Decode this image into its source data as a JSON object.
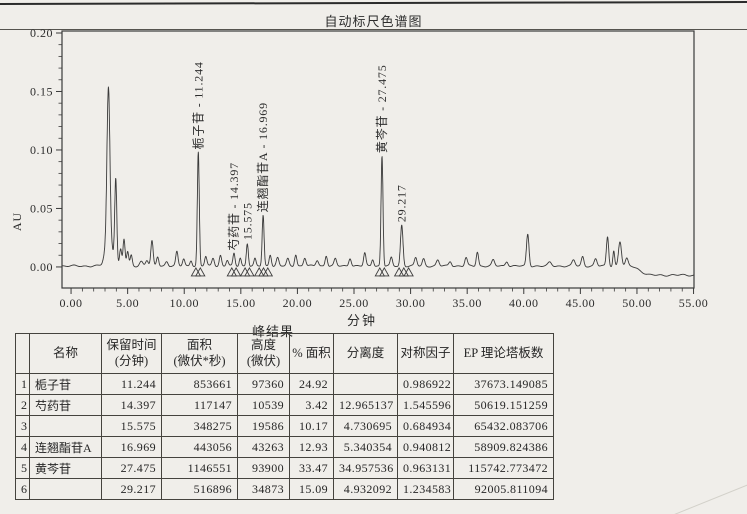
{
  "table": {
    "caption": "峰结果",
    "columns": [
      "",
      "名称",
      "保留时间\n(分钟)",
      "面积\n(微伏*秒)",
      "高度\n(微伏)",
      "% 面积",
      "分离度",
      "对称因子",
      "EP 理论塔板数"
    ],
    "rows": [
      [
        "1",
        "栀子苷",
        "11.244",
        "853661",
        "97360",
        "24.92",
        "",
        "0.986922",
        "37673.149085"
      ],
      [
        "2",
        "芍药苷",
        "14.397",
        "117147",
        "10539",
        "3.42",
        "12.965137",
        "1.545596",
        "50619.151259"
      ],
      [
        "3",
        "",
        "15.575",
        "348275",
        "19586",
        "10.17",
        "4.730695",
        "0.684934",
        "65432.083706"
      ],
      [
        "4",
        "连翘酯苷A",
        "16.969",
        "443056",
        "43263",
        "12.93",
        "5.340354",
        "0.940812",
        "58909.824386"
      ],
      [
        "5",
        "黄芩苷",
        "27.475",
        "1146551",
        "93900",
        "33.47",
        "34.957536",
        "0.963131",
        "115742.773472"
      ],
      [
        "6",
        "",
        "29.217",
        "516896",
        "34873",
        "15.09",
        "4.932092",
        "1.234583",
        "92005.811094"
      ]
    ]
  },
  "chart_data": {
    "type": "line",
    "title": "自动标尺色谱图",
    "xlabel": "分钟",
    "ylabel": "AU",
    "xlim": [
      -0.8,
      55.04
    ],
    "ylim": [
      -0.018,
      0.2017
    ],
    "xticks": [
      0,
      5,
      10,
      15,
      20,
      25,
      30,
      35,
      40,
      45,
      50,
      55
    ],
    "x_minor_step": 1,
    "yticks": [
      0.0,
      0.05,
      0.1,
      0.15,
      0.2
    ],
    "y_minor_step": 0.01,
    "grid": false,
    "legend": false,
    "line_color": "#3a3a3a",
    "text_color": "#2c2c2c",
    "labeled_peaks": [
      {
        "name": "栀子苷",
        "rt": 11.244,
        "apex_au": 0.097,
        "label": "栀子苷 - 11.244"
      },
      {
        "name": "芍药苷",
        "rt": 14.397,
        "apex_au": 0.0105,
        "label": "芍药苷 - 14.397"
      },
      {
        "name": "",
        "rt": 15.575,
        "apex_au": 0.0196,
        "label": "15.575"
      },
      {
        "name": "连翘酯苷A",
        "rt": 16.969,
        "apex_au": 0.0433,
        "label": "连翘酯苷A - 16.969"
      },
      {
        "name": "黄芩苷",
        "rt": 27.475,
        "apex_au": 0.0939,
        "label": "黄芩苷 - 27.475"
      },
      {
        "name": "",
        "rt": 29.217,
        "apex_au": 0.0349,
        "label": "29.217"
      }
    ],
    "trace_peaks": [
      [
        2.95,
        0.004,
        0.12
      ],
      [
        3.3,
        0.136,
        0.13
      ],
      [
        3.42,
        0.018,
        0.32
      ],
      [
        3.95,
        0.071,
        0.09
      ],
      [
        4.38,
        0.014,
        0.09
      ],
      [
        4.68,
        0.023,
        0.09
      ],
      [
        5.0,
        0.012,
        0.09
      ],
      [
        5.32,
        0.009,
        0.09
      ],
      [
        6.2,
        0.004,
        0.15
      ],
      [
        6.7,
        0.005,
        0.12
      ],
      [
        7.15,
        0.021,
        0.1
      ],
      [
        7.65,
        0.008,
        0.1
      ],
      [
        8.45,
        0.004,
        0.12
      ],
      [
        9.35,
        0.012,
        0.1
      ],
      [
        9.95,
        0.006,
        0.1
      ],
      [
        10.6,
        0.005,
        0.1
      ],
      [
        11.244,
        0.097,
        0.085
      ],
      [
        11.9,
        0.008,
        0.1
      ],
      [
        12.55,
        0.007,
        0.11
      ],
      [
        13.2,
        0.009,
        0.1
      ],
      [
        13.8,
        0.005,
        0.1
      ],
      [
        14.397,
        0.0105,
        0.09
      ],
      [
        14.95,
        0.007,
        0.09
      ],
      [
        15.575,
        0.0196,
        0.09
      ],
      [
        16.25,
        0.006,
        0.09
      ],
      [
        16.969,
        0.0433,
        0.085
      ],
      [
        17.6,
        0.01,
        0.1
      ],
      [
        18.25,
        0.007,
        0.11
      ],
      [
        19.15,
        0.006,
        0.11
      ],
      [
        19.85,
        0.01,
        0.1
      ],
      [
        20.65,
        0.007,
        0.11
      ],
      [
        21.75,
        0.005,
        0.12
      ],
      [
        22.55,
        0.009,
        0.1
      ],
      [
        23.35,
        0.006,
        0.11
      ],
      [
        24.65,
        0.007,
        0.11
      ],
      [
        25.95,
        0.011,
        0.1
      ],
      [
        26.65,
        0.006,
        0.1
      ],
      [
        27.475,
        0.0939,
        0.085
      ],
      [
        28.3,
        0.007,
        0.1
      ],
      [
        29.217,
        0.0349,
        0.11
      ],
      [
        30.45,
        0.007,
        0.11
      ],
      [
        31.15,
        0.006,
        0.11
      ],
      [
        32.4,
        0.005,
        0.12
      ],
      [
        33.5,
        0.004,
        0.12
      ],
      [
        34.9,
        0.007,
        0.11
      ],
      [
        35.9,
        0.012,
        0.1
      ],
      [
        37.3,
        0.005,
        0.12
      ],
      [
        38.5,
        0.004,
        0.12
      ],
      [
        40.35,
        0.027,
        0.11
      ],
      [
        42.3,
        0.003,
        0.15
      ],
      [
        44.4,
        0.005,
        0.13
      ],
      [
        45.2,
        0.008,
        0.11
      ],
      [
        46.35,
        0.006,
        0.12
      ],
      [
        47.4,
        0.025,
        0.1
      ],
      [
        47.95,
        0.013,
        0.08
      ],
      [
        48.5,
        0.021,
        0.13
      ],
      [
        49.1,
        0.006,
        0.12
      ]
    ],
    "baseline": {
      "level_au": 0.0008,
      "drop_start_min": 49.4,
      "drop_end_min": 51.2,
      "drop_au": -0.0078
    },
    "integration_marks": [
      11.03,
      11.42,
      14.2,
      14.58,
      15.38,
      15.76,
      16.62,
      17.0,
      17.38,
      27.28,
      27.68,
      28.98,
      29.4,
      29.82
    ]
  }
}
